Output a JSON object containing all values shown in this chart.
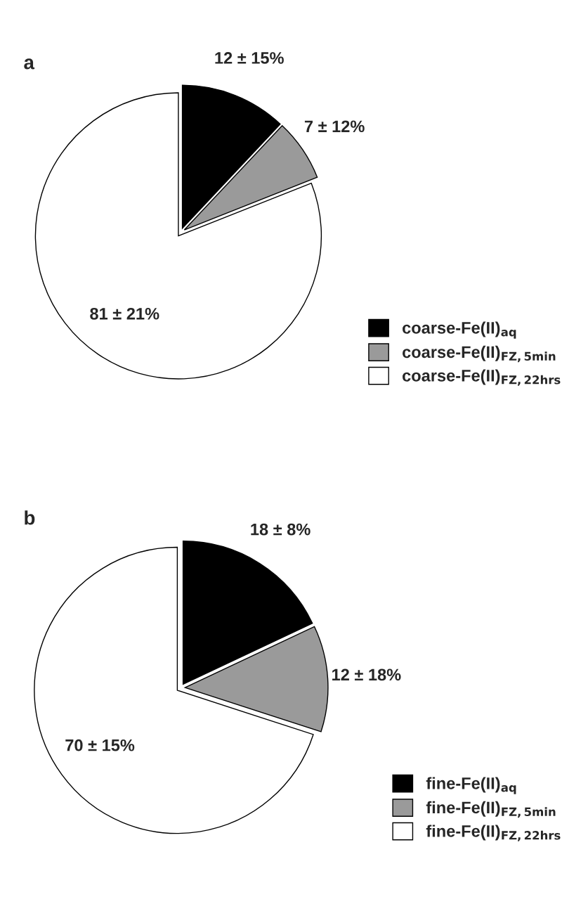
{
  "chart_data": [
    {
      "type": "pie",
      "title": "a",
      "categories": [
        "coarse-Fe(II)$_{aq}$",
        "coarse-Fe(II)$_{FZ,5min}$",
        "coarse-Fe(II)$_{FZ,22hrs}$"
      ],
      "values": [
        12,
        7,
        81
      ],
      "colors": [
        "#000000",
        "#9a9a9a",
        "#ffffff"
      ],
      "value_labels": [
        "12 ± 15%",
        "7 ± 12%",
        "81 ± 21%"
      ],
      "legend": "bottom right"
    },
    {
      "type": "pie",
      "title": "b",
      "categories": [
        "fine-Fe(II)$_{aq}$",
        "fine-Fe(II)$_{FZ,5min}$",
        "fine-Fe(II)$_{FZ,22hrs}$"
      ],
      "values": [
        18,
        12,
        70
      ],
      "colors": [
        "#000000",
        "#9a9a9a",
        "#ffffff"
      ],
      "value_labels": [
        "18 ± 8%",
        "12 ± 18%",
        "70 ± 15%"
      ],
      "legend": "bottom right"
    }
  ]
}
